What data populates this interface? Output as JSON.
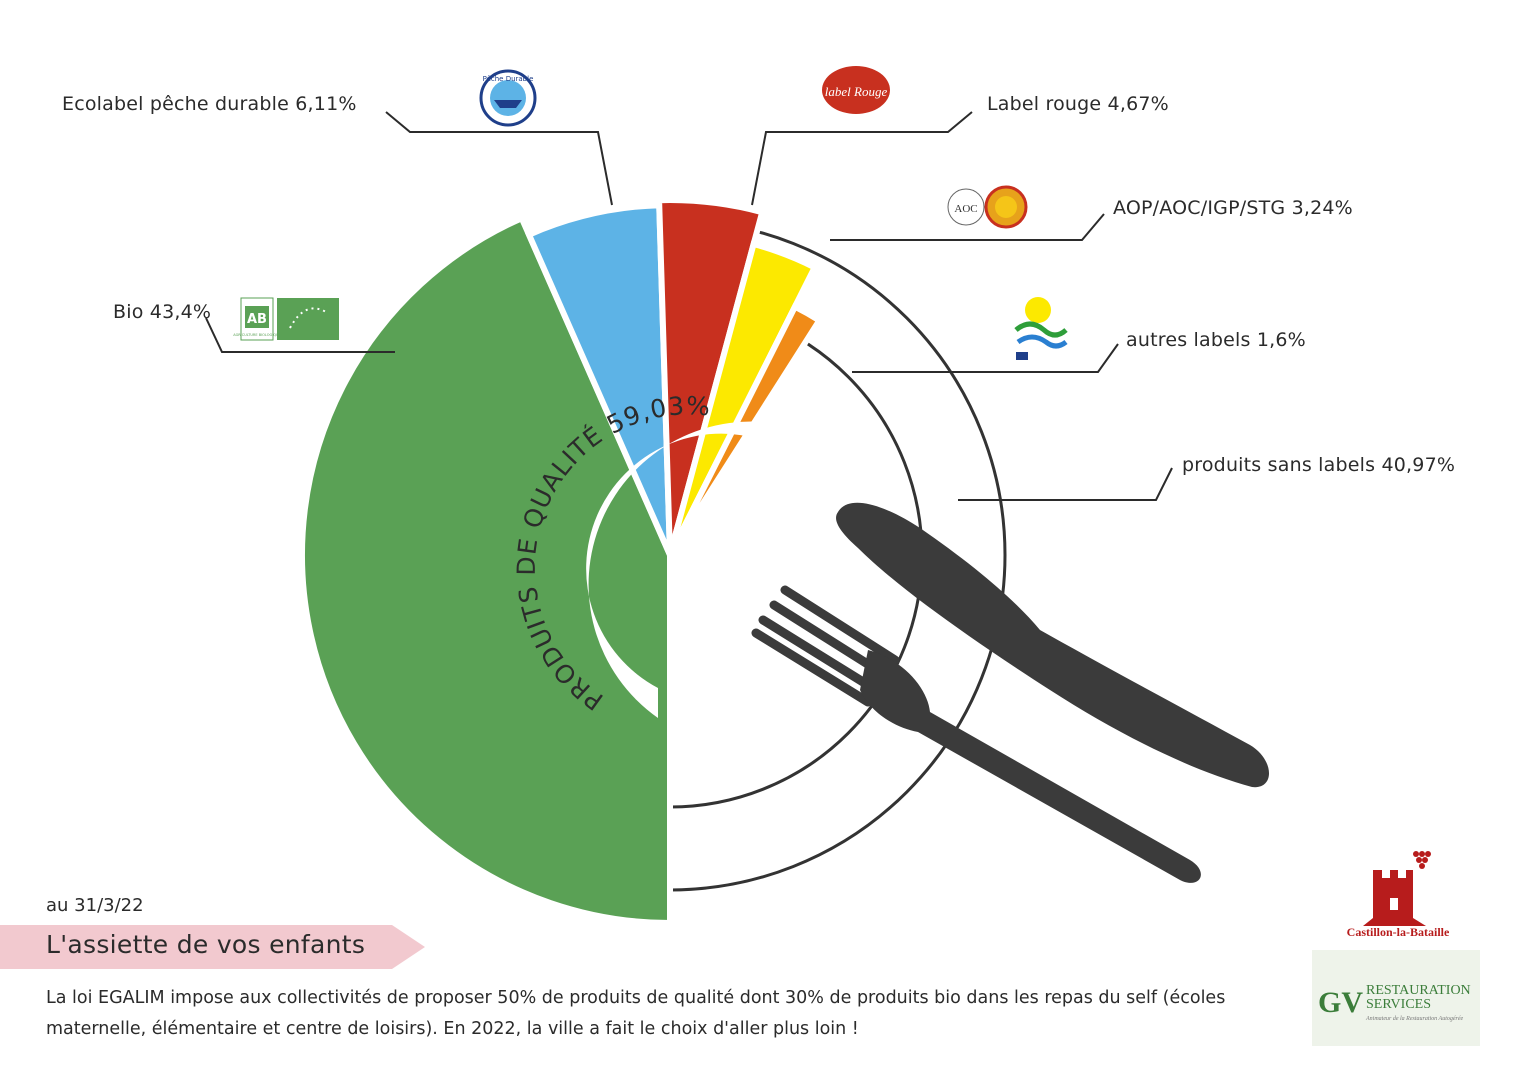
{
  "chart_data": {
    "type": "pie",
    "center_label": "PRODUITS DE QUALITÉ 59,03%",
    "slices": [
      {
        "name": "Bio 43,4%",
        "value": 43.4,
        "color": "#5aa155"
      },
      {
        "name": "Ecolabel pêche durable 6,11%",
        "value": 6.11,
        "color": "#5db3e6"
      },
      {
        "name": "Label rouge 4,67%",
        "value": 4.67,
        "color": "#c8301f"
      },
      {
        "name": "AOP/AOC/IGP/STG 3,24%",
        "value": 3.24,
        "color": "#fce900"
      },
      {
        "name": "autres labels 1,6%",
        "value": 1.6,
        "color": "#f08b18"
      },
      {
        "name": "produits sans labels 40,97%",
        "value": 40.97,
        "color": "#ffffff"
      }
    ]
  },
  "date": "au 31/3/22",
  "title": "L'assiette de vos enfants",
  "description": "La loi EGALIM impose aux collectivités de proposer 50% de produits de qualité dont 30% de produits bio dans les repas du self (écoles maternelle, élémentaire et centre de loisirs). En 2022, la ville a fait le choix d'aller plus loin !",
  "logos": {
    "peche": "Pêche Durable",
    "label_rouge": "label Rouge",
    "aoc": "AOC",
    "ab": "AB",
    "ab_caption": "AGRICULTURE BIOLOGIQUE",
    "castillon": "Castillon-la-Bataille",
    "gv_mark": "GV",
    "gv_line1": "RESTAURATION",
    "gv_line2": "SERVICES",
    "gv_tagline": "Animateur de la Restauration Autogérée"
  },
  "colors": {
    "plate_outline": "#333333",
    "cutlery": "#3b3b3b",
    "leader_line": "#2b2b2b"
  }
}
